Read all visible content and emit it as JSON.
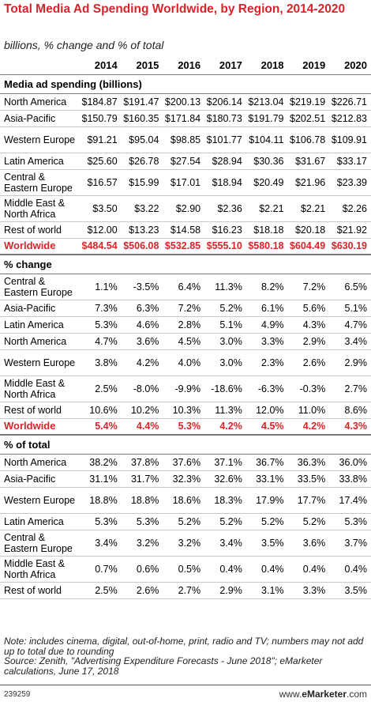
{
  "chart_data": {
    "type": "table",
    "title": "Total Media Ad Spending Worldwide, by Region, 2014-2020",
    "subtitle": "billions, % change and % of total",
    "columns": [
      "2014",
      "2015",
      "2016",
      "2017",
      "2018",
      "2019",
      "2020"
    ],
    "sections": [
      {
        "heading": "Media ad spending (billions)",
        "rows": [
          {
            "label": "North America",
            "values": [
              "$184.87",
              "$191.47",
              "$200.13",
              "$206.14",
              "$213.04",
              "$219.19",
              "$226.71"
            ]
          },
          {
            "label": "Asia-Pacific",
            "values": [
              "$150.79",
              "$160.35",
              "$171.84",
              "$180.73",
              "$191.79",
              "$202.51",
              "$212.83"
            ]
          },
          {
            "label": "Western Europe",
            "values": [
              "$91.21",
              "$95.04",
              "$98.85",
              "$101.77",
              "$104.11",
              "$106.78",
              "$109.91"
            ]
          },
          {
            "label": "Latin America",
            "values": [
              "$25.60",
              "$26.78",
              "$27.54",
              "$28.94",
              "$30.36",
              "$31.67",
              "$33.17"
            ]
          },
          {
            "label": "Central & Eastern Europe",
            "values": [
              "$16.57",
              "$15.99",
              "$17.01",
              "$18.94",
              "$20.49",
              "$21.96",
              "$23.39"
            ]
          },
          {
            "label": "Middle East & North Africa",
            "values": [
              "$3.50",
              "$3.22",
              "$2.90",
              "$2.36",
              "$2.21",
              "$2.21",
              "$2.26"
            ]
          },
          {
            "label": "Rest of world",
            "values": [
              "$12.00",
              "$13.23",
              "$14.58",
              "$16.23",
              "$18.18",
              "$20.18",
              "$21.92"
            ]
          }
        ],
        "total": {
          "label": "Worldwide",
          "values": [
            "$484.54",
            "$506.08",
            "$532.85",
            "$555.10",
            "$580.18",
            "$604.49",
            "$630.19"
          ]
        }
      },
      {
        "heading": "% change",
        "rows": [
          {
            "label": "Central & Eastern Europe",
            "values": [
              "1.1%",
              "-3.5%",
              "6.4%",
              "11.3%",
              "8.2%",
              "7.2%",
              "6.5%"
            ]
          },
          {
            "label": "Asia-Pacific",
            "values": [
              "7.3%",
              "6.3%",
              "7.2%",
              "5.2%",
              "6.1%",
              "5.6%",
              "5.1%"
            ]
          },
          {
            "label": "Latin America",
            "values": [
              "5.3%",
              "4.6%",
              "2.8%",
              "5.1%",
              "4.9%",
              "4.3%",
              "4.7%"
            ]
          },
          {
            "label": "North America",
            "values": [
              "4.7%",
              "3.6%",
              "4.5%",
              "3.0%",
              "3.3%",
              "2.9%",
              "3.4%"
            ]
          },
          {
            "label": "Western Europe",
            "values": [
              "3.8%",
              "4.2%",
              "4.0%",
              "3.0%",
              "2.3%",
              "2.6%",
              "2.9%"
            ]
          },
          {
            "label": "Middle East & North Africa",
            "values": [
              "2.5%",
              "-8.0%",
              "-9.9%",
              "-18.6%",
              "-6.3%",
              "-0.3%",
              "2.7%"
            ]
          },
          {
            "label": "Rest of world",
            "values": [
              "10.6%",
              "10.2%",
              "10.3%",
              "11.3%",
              "12.0%",
              "11.0%",
              "8.6%"
            ]
          }
        ],
        "total": {
          "label": "Worldwide",
          "values": [
            "5.4%",
            "4.4%",
            "5.3%",
            "4.2%",
            "4.5%",
            "4.2%",
            "4.3%"
          ]
        }
      },
      {
        "heading": "% of total",
        "rows": [
          {
            "label": "North America",
            "values": [
              "38.2%",
              "37.8%",
              "37.6%",
              "37.1%",
              "36.7%",
              "36.3%",
              "36.0%"
            ]
          },
          {
            "label": "Asia-Pacific",
            "values": [
              "31.1%",
              "31.7%",
              "32.3%",
              "32.6%",
              "33.1%",
              "33.5%",
              "33.8%"
            ]
          },
          {
            "label": "Western Europe",
            "values": [
              "18.8%",
              "18.8%",
              "18.6%",
              "18.3%",
              "17.9%",
              "17.7%",
              "17.4%"
            ]
          },
          {
            "label": "Latin America",
            "values": [
              "5.3%",
              "5.3%",
              "5.2%",
              "5.2%",
              "5.2%",
              "5.2%",
              "5.3%"
            ]
          },
          {
            "label": "Central & Eastern Europe",
            "values": [
              "3.4%",
              "3.2%",
              "3.2%",
              "3.4%",
              "3.5%",
              "3.6%",
              "3.7%"
            ]
          },
          {
            "label": "Middle East & North Africa",
            "values": [
              "0.7%",
              "0.6%",
              "0.5%",
              "0.4%",
              "0.4%",
              "0.4%",
              "0.4%"
            ]
          },
          {
            "label": "Rest of world",
            "values": [
              "2.5%",
              "2.6%",
              "2.7%",
              "2.9%",
              "3.1%",
              "3.3%",
              "3.5%"
            ]
          }
        ]
      }
    ]
  },
  "note": "Note: includes cinema, digital, out-of-home, print, radio and TV; numbers may not add up to total due to rounding",
  "source": "Source: Zenith, \"Advertising Expenditure Forecasts - June 2018\"; eMarketer calculations, June 17, 2018",
  "footer": {
    "chart_id": "239259",
    "brand_prefix": "www.",
    "brand_name": "eMarketer",
    "brand_suffix": ".com"
  },
  "colors": {
    "accent": "#d9232a"
  }
}
